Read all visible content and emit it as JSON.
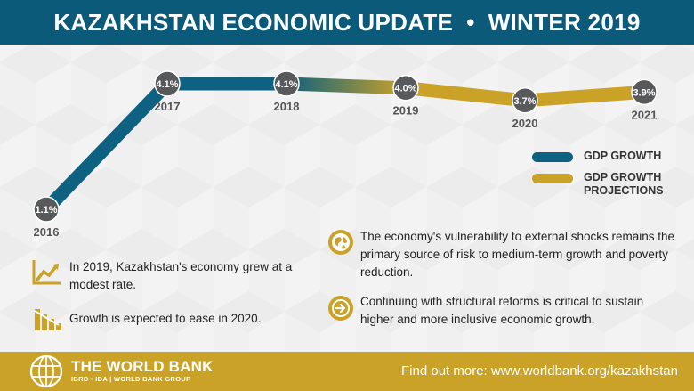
{
  "header": {
    "title": "KAZAKHSTAN ECONOMIC UPDATE  •  WINTER 2019"
  },
  "colors": {
    "growth": "#0e6180",
    "projection": "#c9a227",
    "marker": "#58595b",
    "header_bg": "#0b5a7a"
  },
  "chart_data": {
    "type": "line",
    "x": [
      "2016",
      "2017",
      "2018",
      "2019",
      "2020",
      "2021"
    ],
    "series": [
      {
        "name": "GDP GROWTH",
        "values": [
          1.1,
          4.1,
          4.1,
          4.0,
          null,
          null
        ]
      },
      {
        "name": "GDP GROWTH PROJECTIONS",
        "values": [
          null,
          null,
          null,
          4.0,
          3.7,
          3.9
        ]
      }
    ],
    "value_labels": [
      "1.1%",
      "4.1%",
      "4.1%",
      "4.0%",
      "3.7%",
      "3.9%"
    ]
  },
  "legend": [
    {
      "label": "GDP GROWTH"
    },
    {
      "label": "GDP GROWTH PROJECTIONS"
    }
  ],
  "bullets_left": [
    {
      "icon": "growth-chart-icon",
      "text": "In 2019, Kazakhstan's economy grew at a modest rate."
    },
    {
      "icon": "declining-bars-icon",
      "text": "Growth is expected to ease in 2020."
    }
  ],
  "bullets_right": [
    {
      "icon": "globe-icon",
      "text": "The economy's vulnerability to external shocks remains the primary source of risk to medium-term growth and poverty reduction."
    },
    {
      "icon": "arrow-right-icon",
      "text": "Continuing with structural reforms is critical to sustain higher and more inclusive economic growth."
    }
  ],
  "footer": {
    "org_name": "THE WORLD BANK",
    "org_sub": "IBRD • IDA | WORLD BANK GROUP",
    "link_text": "Find out more: www.worldbank.org/kazakhstan"
  }
}
